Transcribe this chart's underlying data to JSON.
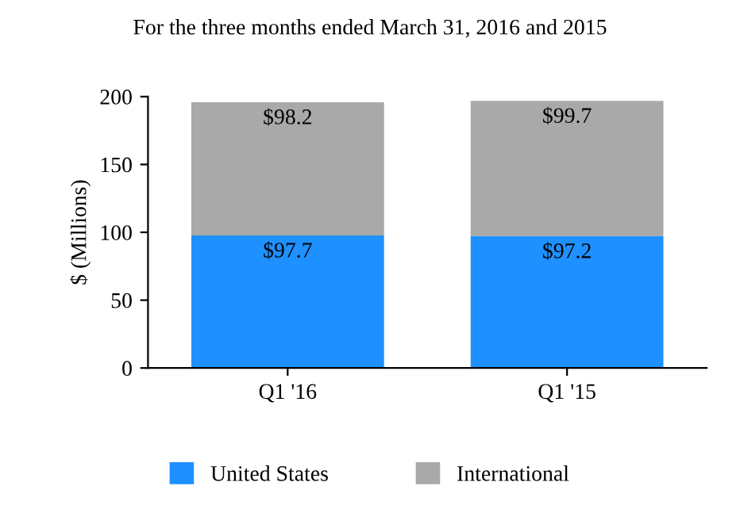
{
  "chart_data": {
    "type": "bar",
    "title": "For the three months ended March 31, 2016 and 2015",
    "ylabel": "$ (Millions)",
    "categories": [
      "Q1 '16",
      "Q1 '15"
    ],
    "stacked": true,
    "series": [
      {
        "name": "United States",
        "color": "#1e90ff",
        "values": [
          97.7,
          97.2
        ],
        "value_labels": [
          "$97.7",
          "$97.2"
        ]
      },
      {
        "name": "International",
        "color": "#a9a9a9",
        "values": [
          98.2,
          99.7
        ],
        "value_labels": [
          "$98.2",
          "$99.7"
        ]
      }
    ],
    "ylim": [
      0,
      200
    ],
    "yticks": [
      0,
      50,
      100,
      150,
      200
    ],
    "grid": false,
    "legend": "bottom"
  }
}
